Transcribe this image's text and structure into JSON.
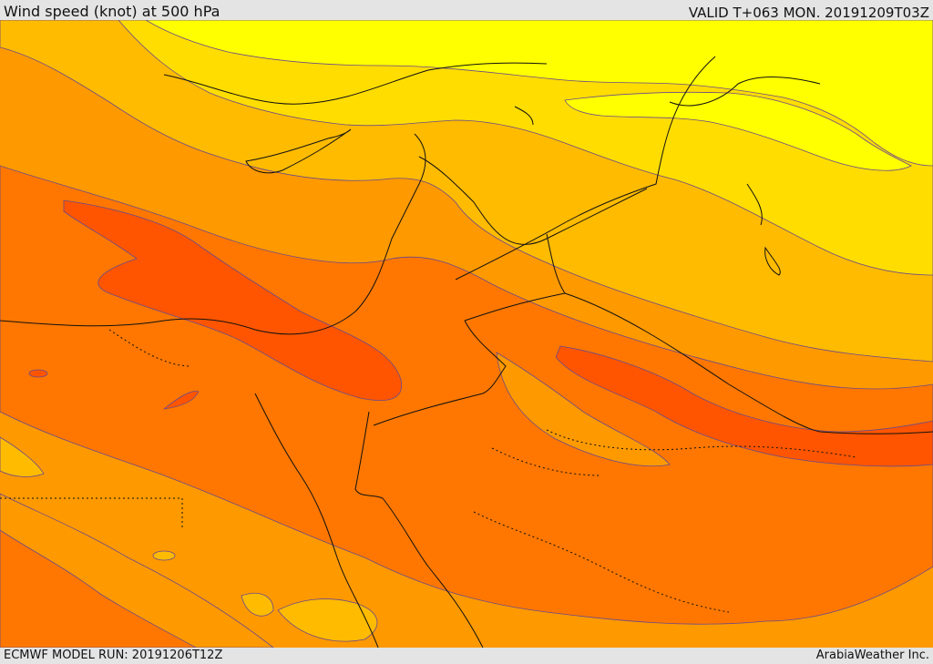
{
  "header": {
    "title": "Wind speed (knot) at 500 hPa",
    "valid_time": "VALID T+063 MON. 20191209T03Z"
  },
  "footer": {
    "model_run": "ECMWF MODEL RUN: 20191206T12Z",
    "credit": "ArabiaWeather Inc."
  },
  "map": {
    "field": "wind speed at 500 hPa",
    "region": "Eastern Mediterranean / Middle East",
    "colors": {
      "band_weakest": "#ffff00",
      "band_weak": "#ffdd00",
      "band_light": "#ffbb00",
      "band_moderate": "#ff9900",
      "band_strong": "#ff7700",
      "band_strongest": "#ff5500",
      "contour_line": "#6a4a8a",
      "coastline": "#111111"
    }
  }
}
